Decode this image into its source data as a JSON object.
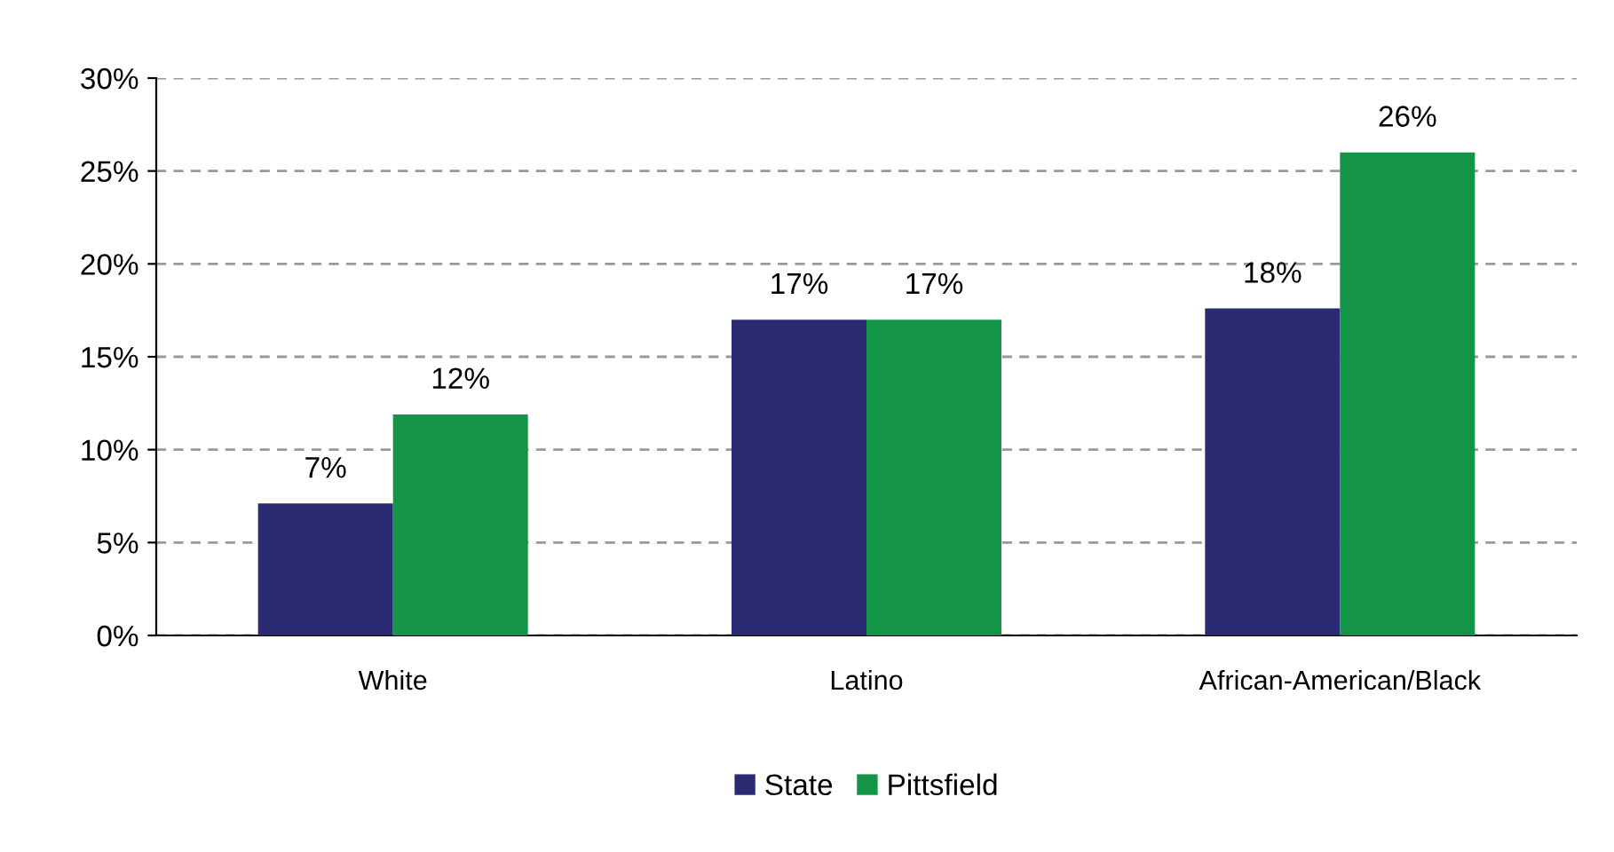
{
  "chart_data": {
    "type": "bar",
    "categories": [
      "White",
      "Latino",
      "African-American/Black"
    ],
    "series": [
      {
        "name": "State",
        "color": "#2a2a72",
        "values": [
          7.1,
          17,
          17.6
        ],
        "value_labels": [
          "7%",
          "17%",
          "18%"
        ]
      },
      {
        "name": "Pittsfield",
        "color": "#139447",
        "values": [
          11.9,
          17,
          26
        ],
        "value_labels": [
          "12%",
          "17%",
          "26%"
        ]
      }
    ],
    "ylim": [
      0,
      30
    ],
    "yticks": [
      {
        "value": 0,
        "label": "0%"
      },
      {
        "value": 5,
        "label": "5%"
      },
      {
        "value": 10,
        "label": "10%"
      },
      {
        "value": 15,
        "label": "15%"
      },
      {
        "value": 20,
        "label": "20%"
      },
      {
        "value": 25,
        "label": "25%"
      },
      {
        "value": 30,
        "label": "30%"
      }
    ],
    "grid": "y",
    "legend": "bottom"
  }
}
